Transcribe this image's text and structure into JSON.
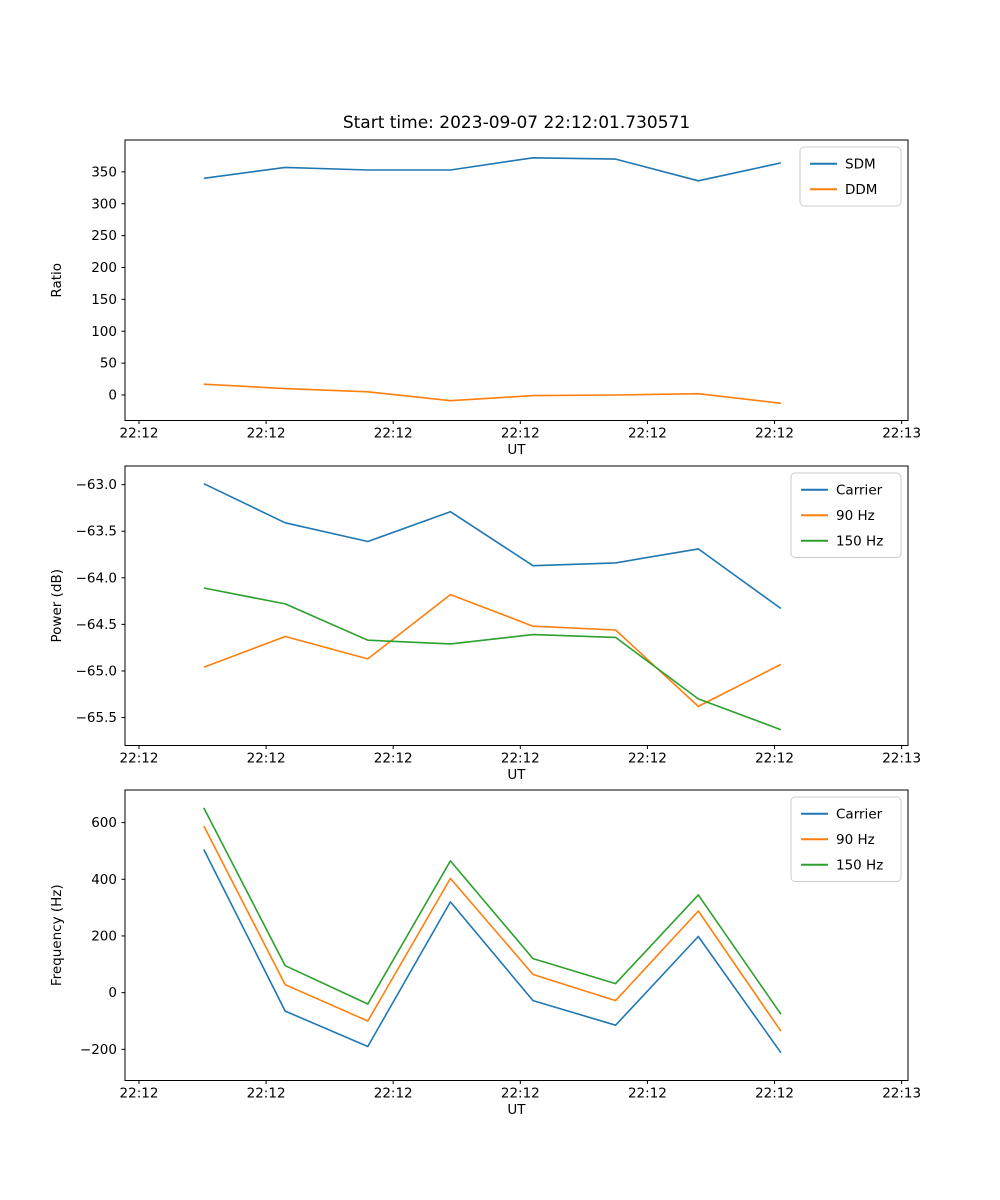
{
  "figure": {
    "title": "Start time: 2023-09-07 22:12:01.730571",
    "background": "#ffffff",
    "text_color": "#000000",
    "spine_color": "#000000",
    "legend_border_color": "#cccccc",
    "legend_background": "rgba(255,255,255,0.8)"
  },
  "chart_data": [
    {
      "type": "line",
      "title": "Start time: 2023-09-07 22:12:01.730571",
      "xlabel": "UT",
      "ylabel": "Ratio",
      "grid": false,
      "legend_position": "upper right",
      "x_seconds": [
        5.1,
        11.5,
        18.0,
        24.5,
        31.0,
        37.5,
        44.0,
        50.5
      ],
      "xlim_seconds": [
        -1.1,
        60.5
      ],
      "xtick_seconds": [
        0,
        10,
        20,
        30,
        40,
        50,
        60
      ],
      "xtick_labels": [
        "22:12",
        "22:12",
        "22:12",
        "22:12",
        "22:12",
        "22:12",
        "22:13"
      ],
      "ylim": [
        -40,
        400
      ],
      "ytick_values": [
        0,
        50,
        100,
        150,
        200,
        250,
        300,
        350
      ],
      "ytick_labels": [
        "0",
        "50",
        "100",
        "150",
        "200",
        "250",
        "300",
        "350"
      ],
      "series": [
        {
          "name": "SDM",
          "color": "#1f77b4",
          "values": [
            340,
            357,
            353,
            353,
            372,
            370,
            336,
            364
          ]
        },
        {
          "name": "DDM",
          "color": "#ff7f0e",
          "values": [
            17,
            10,
            5,
            -9,
            -1,
            0,
            2,
            -13
          ]
        }
      ]
    },
    {
      "type": "line",
      "title": "",
      "xlabel": "UT",
      "ylabel": "Power (dB)",
      "grid": false,
      "legend_position": "upper right",
      "x_seconds": [
        5.1,
        11.5,
        18.0,
        24.5,
        31.0,
        37.5,
        44.0,
        50.5
      ],
      "xlim_seconds": [
        -1.1,
        60.5
      ],
      "xtick_seconds": [
        0,
        10,
        20,
        30,
        40,
        50,
        60
      ],
      "xtick_labels": [
        "22:12",
        "22:12",
        "22:12",
        "22:12",
        "22:12",
        "22:12",
        "22:13"
      ],
      "ylim": [
        -65.8,
        -62.8
      ],
      "ytick_values": [
        -65.5,
        -65.0,
        -64.5,
        -64.0,
        -63.5,
        -63.0
      ],
      "ytick_labels": [
        "−65.5",
        "−65.0",
        "−64.5",
        "−64.0",
        "−63.5",
        "−63.0"
      ],
      "series": [
        {
          "name": "Carrier",
          "color": "#1f77b4",
          "values": [
            -62.99,
            -63.41,
            -63.61,
            -63.29,
            -63.87,
            -63.84,
            -63.69,
            -64.33
          ]
        },
        {
          "name": "90 Hz",
          "color": "#ff7f0e",
          "values": [
            -64.96,
            -64.63,
            -64.87,
            -64.18,
            -64.52,
            -64.56,
            -65.38,
            -64.93
          ]
        },
        {
          "name": "150 Hz",
          "color": "#2ca02c",
          "values": [
            -64.11,
            -64.28,
            -64.67,
            -64.71,
            -64.61,
            -64.64,
            -65.3,
            -65.63
          ]
        }
      ]
    },
    {
      "type": "line",
      "title": "",
      "xlabel": "UT",
      "ylabel": "Frequency (Hz)",
      "grid": false,
      "legend_position": "upper right",
      "x_seconds": [
        5.1,
        11.5,
        18.0,
        24.5,
        31.0,
        37.5,
        44.0,
        50.5
      ],
      "xlim_seconds": [
        -1.1,
        60.5
      ],
      "xtick_seconds": [
        0,
        10,
        20,
        30,
        40,
        50,
        60
      ],
      "xtick_labels": [
        "22:12",
        "22:12",
        "22:12",
        "22:12",
        "22:12",
        "22:12",
        "22:13"
      ],
      "ylim": [
        -310,
        715
      ],
      "ytick_values": [
        -200,
        0,
        200,
        400,
        600
      ],
      "ytick_labels": [
        "−200",
        "0",
        "200",
        "400",
        "600"
      ],
      "series": [
        {
          "name": "Carrier",
          "color": "#1f77b4",
          "values": [
            505,
            -65,
            -190,
            320,
            -28,
            -115,
            198,
            -212
          ]
        },
        {
          "name": "90 Hz",
          "color": "#ff7f0e",
          "values": [
            588,
            28,
            -100,
            403,
            64,
            -28,
            288,
            -136
          ]
        },
        {
          "name": "150 Hz",
          "color": "#2ca02c",
          "values": [
            652,
            95,
            -40,
            465,
            120,
            32,
            345,
            -76
          ]
        }
      ]
    }
  ]
}
